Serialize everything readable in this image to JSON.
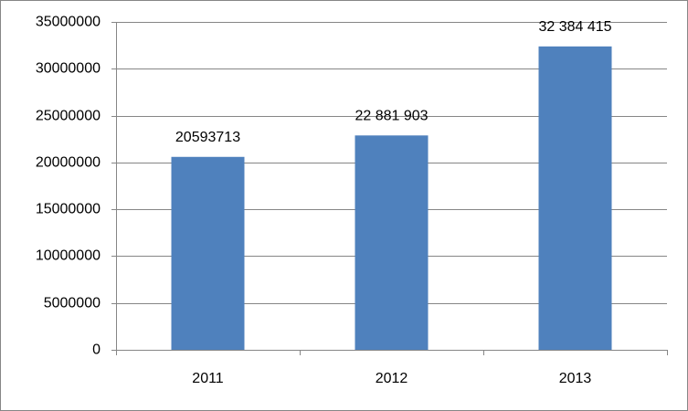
{
  "chart_data": {
    "type": "bar",
    "categories": [
      "2011",
      "2012",
      "2013"
    ],
    "values": [
      20593713,
      22881903,
      32384415
    ],
    "value_labels": [
      "20593713",
      "22 881 903",
      "32 384 415"
    ],
    "color": "#4f81bd",
    "ylim": [
      0,
      35000000
    ],
    "yticks": [
      0,
      5000000,
      10000000,
      15000000,
      20000000,
      25000000,
      30000000,
      35000000
    ],
    "grid": true
  }
}
